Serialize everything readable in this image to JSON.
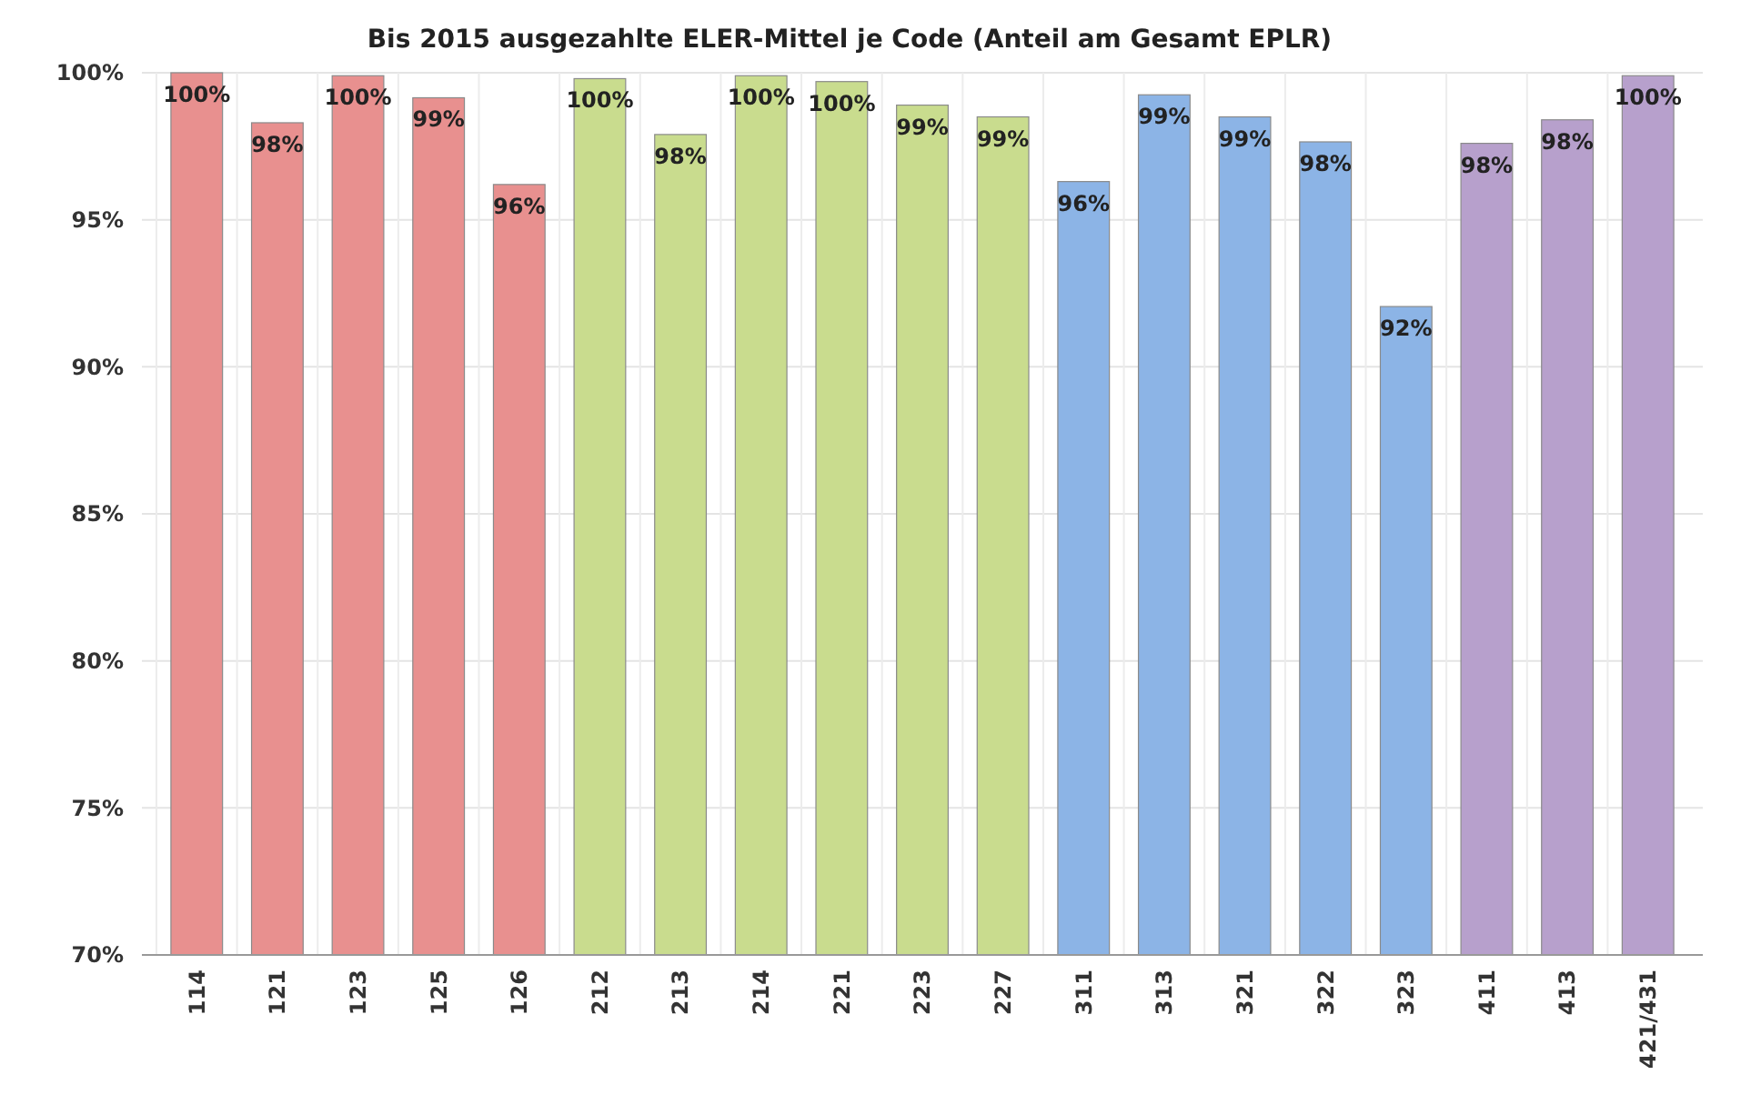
{
  "chart_data": {
    "type": "bar",
    "title": "Bis 2015 ausgezahlte ELER-Mittel  je Code  (Anteil am Gesamt EPLR)",
    "categories": [
      "114",
      "121",
      "123",
      "125",
      "126",
      "212",
      "213",
      "214",
      "221",
      "223",
      "227",
      "311",
      "313",
      "321",
      "322",
      "323",
      "411",
      "413",
      "421/431"
    ],
    "values": [
      100,
      98.3,
      99.9,
      99.15,
      96.2,
      99.8,
      97.9,
      99.9,
      99.7,
      98.9,
      98.5,
      96.3,
      99.25,
      98.5,
      97.65,
      92.05,
      97.6,
      98.4,
      99.9
    ],
    "value_labels": [
      "100%",
      "98%",
      "100%",
      "99%",
      "96%",
      "100%",
      "98%",
      "100%",
      "100%",
      "99%",
      "99%",
      "96%",
      "99%",
      "99%",
      "98%",
      "92%",
      "98%",
      "98%",
      "100%"
    ],
    "colors": [
      "#e8908f",
      "#e8908f",
      "#e8908f",
      "#e8908f",
      "#e8908f",
      "#c9dc8e",
      "#c9dc8e",
      "#c9dc8e",
      "#c9dc8e",
      "#c9dc8e",
      "#c9dc8e",
      "#8cb4e6",
      "#8cb4e6",
      "#8cb4e6",
      "#8cb4e6",
      "#8cb4e6",
      "#b7a0cc",
      "#b7a0cc",
      "#b7a0cc"
    ],
    "ylim": [
      70,
      100
    ],
    "yticks": [
      {
        "value": 70,
        "label": "70%"
      },
      {
        "value": 75,
        "label": "75%"
      },
      {
        "value": 80,
        "label": "80%"
      },
      {
        "value": 85,
        "label": "85%"
      },
      {
        "value": 90,
        "label": "90%"
      },
      {
        "value": 95,
        "label": "95%"
      },
      {
        "value": 100,
        "label": "100%"
      }
    ],
    "grid": true
  }
}
